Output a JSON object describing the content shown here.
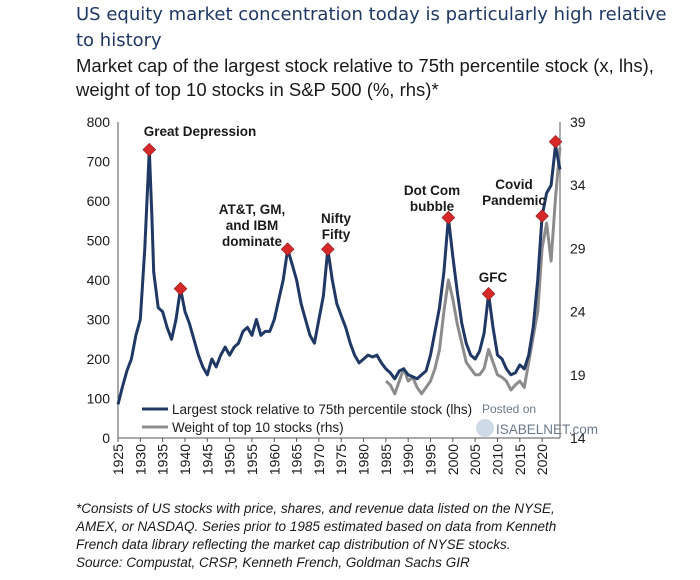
{
  "title": "US equity market concentration today is particularly high relative to history",
  "subtitle": "Market cap of the largest stock relative to 75th percentile stock (x, lhs), weight of top 10 stocks in S&P 500 (%, rhs)*",
  "footnote": [
    "*Consists of US stocks with price, shares, and revenue data listed on the NYSE,",
    "AMEX, or NASDAQ. Series prior to 1985 estimated based on data from Kenneth",
    "French data library reflecting the market cap distribution of NYSE stocks.",
    "Source: Compustat, CRSP, Kenneth French, Goldman Sachs GIR"
  ],
  "watermark": {
    "line1": "Posted on",
    "line2": "ISABELNET.com"
  },
  "chart_data": {
    "type": "line",
    "ylim_left": [
      0,
      800
    ],
    "ylim_right": [
      14,
      39
    ],
    "xlim": [
      1925,
      2024
    ],
    "left_ticks": [
      0,
      100,
      200,
      300,
      400,
      500,
      600,
      700,
      800
    ],
    "right_ticks": [
      14,
      19,
      24,
      29,
      34,
      39
    ],
    "x_ticks": [
      "1925",
      "1930",
      "1935",
      "1940",
      "1945",
      "1950",
      "1955",
      "1960",
      "1965",
      "1970",
      "1975",
      "1980",
      "1985",
      "1990",
      "1995",
      "2000",
      "2005",
      "2010",
      "2015",
      "2020"
    ],
    "legend_position": "bottom-left",
    "grid": false,
    "series": [
      {
        "name": "Largest stock relative to 75th percentile stock (lhs)",
        "axis": "left",
        "color": "#1f3864",
        "points": [
          [
            1925,
            85
          ],
          [
            1926,
            130
          ],
          [
            1927,
            170
          ],
          [
            1928,
            200
          ],
          [
            1929,
            260
          ],
          [
            1930,
            300
          ],
          [
            1931,
            480
          ],
          [
            1932,
            730
          ],
          [
            1932.6,
            560
          ],
          [
            1933,
            420
          ],
          [
            1934,
            330
          ],
          [
            1935,
            320
          ],
          [
            1936,
            280
          ],
          [
            1937,
            250
          ],
          [
            1938,
            300
          ],
          [
            1939,
            378
          ],
          [
            1940,
            320
          ],
          [
            1941,
            290
          ],
          [
            1942,
            250
          ],
          [
            1943,
            210
          ],
          [
            1944,
            180
          ],
          [
            1945,
            160
          ],
          [
            1946,
            200
          ],
          [
            1947,
            180
          ],
          [
            1948,
            210
          ],
          [
            1949,
            230
          ],
          [
            1950,
            210
          ],
          [
            1951,
            230
          ],
          [
            1952,
            240
          ],
          [
            1953,
            270
          ],
          [
            1954,
            280
          ],
          [
            1955,
            260
          ],
          [
            1956,
            300
          ],
          [
            1957,
            260
          ],
          [
            1958,
            270
          ],
          [
            1959,
            270
          ],
          [
            1960,
            300
          ],
          [
            1961,
            350
          ],
          [
            1962,
            400
          ],
          [
            1963,
            478
          ],
          [
            1964,
            440
          ],
          [
            1965,
            400
          ],
          [
            1966,
            340
          ],
          [
            1967,
            300
          ],
          [
            1968,
            260
          ],
          [
            1969,
            240
          ],
          [
            1970,
            300
          ],
          [
            1971,
            360
          ],
          [
            1972,
            478
          ],
          [
            1973,
            400
          ],
          [
            1974,
            340
          ],
          [
            1975,
            310
          ],
          [
            1976,
            280
          ],
          [
            1977,
            240
          ],
          [
            1978,
            210
          ],
          [
            1979,
            190
          ],
          [
            1980,
            200
          ],
          [
            1981,
            210
          ],
          [
            1982,
            205
          ],
          [
            1983,
            210
          ],
          [
            1984,
            190
          ],
          [
            1985,
            175
          ],
          [
            1986,
            165
          ],
          [
            1987,
            150
          ],
          [
            1988,
            170
          ],
          [
            1989,
            175
          ],
          [
            1990,
            160
          ],
          [
            1991,
            155
          ],
          [
            1992,
            150
          ],
          [
            1993,
            160
          ],
          [
            1994,
            170
          ],
          [
            1995,
            210
          ],
          [
            1996,
            270
          ],
          [
            1997,
            330
          ],
          [
            1998,
            420
          ],
          [
            1999,
            558
          ],
          [
            2000,
            460
          ],
          [
            2001,
            370
          ],
          [
            2002,
            290
          ],
          [
            2003,
            240
          ],
          [
            2004,
            210
          ],
          [
            2005,
            200
          ],
          [
            2006,
            220
          ],
          [
            2007,
            265
          ],
          [
            2008,
            365
          ],
          [
            2009,
            280
          ],
          [
            2010,
            210
          ],
          [
            2011,
            200
          ],
          [
            2012,
            175
          ],
          [
            2013,
            160
          ],
          [
            2014,
            165
          ],
          [
            2015,
            185
          ],
          [
            2016,
            175
          ],
          [
            2017,
            210
          ],
          [
            2018,
            280
          ],
          [
            2019,
            400
          ],
          [
            2020,
            562
          ],
          [
            2021,
            620
          ],
          [
            2022,
            640
          ],
          [
            2023,
            740
          ],
          [
            2024,
            680
          ]
        ]
      },
      {
        "name": "Weight of top 10 stocks (rhs)",
        "axis": "right",
        "color": "#8c8c8c",
        "points": [
          [
            1985,
            18.5
          ],
          [
            1986,
            18.2
          ],
          [
            1987,
            17.5
          ],
          [
            1988,
            18.5
          ],
          [
            1989,
            19.5
          ],
          [
            1990,
            18.5
          ],
          [
            1991,
            18.8
          ],
          [
            1992,
            18.0
          ],
          [
            1993,
            17.5
          ],
          [
            1994,
            18.0
          ],
          [
            1995,
            18.5
          ],
          [
            1996,
            19.5
          ],
          [
            1997,
            21.0
          ],
          [
            1998,
            24.0
          ],
          [
            1999,
            26.5
          ],
          [
            2000,
            25.0
          ],
          [
            2001,
            23.0
          ],
          [
            2002,
            21.5
          ],
          [
            2003,
            20.0
          ],
          [
            2004,
            19.5
          ],
          [
            2005,
            19.0
          ],
          [
            2006,
            19.0
          ],
          [
            2007,
            19.5
          ],
          [
            2008,
            21.0
          ],
          [
            2009,
            20.0
          ],
          [
            2010,
            19.0
          ],
          [
            2011,
            18.8
          ],
          [
            2012,
            18.5
          ],
          [
            2013,
            17.8
          ],
          [
            2014,
            18.2
          ],
          [
            2015,
            18.5
          ],
          [
            2016,
            18.0
          ],
          [
            2017,
            20.0
          ],
          [
            2018,
            22.0
          ],
          [
            2019,
            24.0
          ],
          [
            2020,
            29.0
          ],
          [
            2021,
            31.0
          ],
          [
            2022,
            28.0
          ],
          [
            2023,
            33.0
          ],
          [
            2024,
            37.0
          ]
        ]
      }
    ],
    "annotations": [
      {
        "label": [
          "Great Depression"
        ],
        "x": 1932,
        "y": 730
      },
      {
        "label": [
          "",
          ""
        ],
        "x": 1939,
        "y": 378
      },
      {
        "label": [
          "AT&T, GM,",
          "and IBM",
          "dominate"
        ],
        "x": 1963,
        "y": 478
      },
      {
        "label": [
          "Nifty",
          "Fifty"
        ],
        "x": 1972,
        "y": 478
      },
      {
        "label": [
          "Dot Com",
          "bubble"
        ],
        "x": 1999,
        "y": 558
      },
      {
        "label": [
          "GFC"
        ],
        "x": 2008,
        "y": 365
      },
      {
        "label": [
          "Covid",
          "Pandemic"
        ],
        "x": 2020,
        "y": 562
      },
      {
        "label": [
          ""
        ],
        "x": 2023,
        "y": 750
      }
    ]
  }
}
